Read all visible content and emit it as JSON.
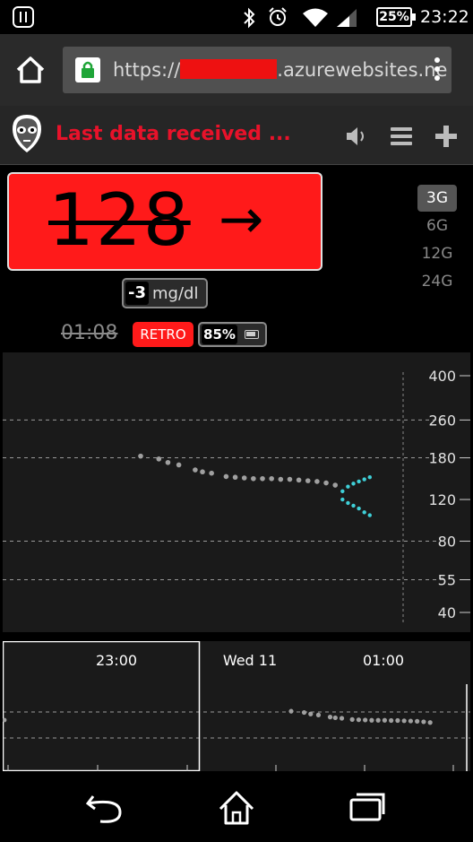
{
  "status_bar": {
    "battery": "25%",
    "time": "23:22",
    "icons": [
      "app-icon",
      "bluetooth-icon",
      "alarm-icon",
      "wifi-icon",
      "signal-icon",
      "battery-icon"
    ]
  },
  "browser": {
    "url_prefix": "https://",
    "url_suffix": ".azurewebsites.ne",
    "icons": [
      "home-icon",
      "lock-icon",
      "overflow-menu-icon"
    ]
  },
  "header": {
    "status_text": "Last data received ...",
    "icons": [
      "alien-logo-icon",
      "speaker-icon",
      "menu-icon",
      "plus-icon"
    ]
  },
  "reading": {
    "bg_value": "128",
    "trend_arrow": "→",
    "delta_value": "-3",
    "unit": "mg/dl",
    "time_ago": "01:08",
    "retro_label": "RETRO",
    "uploader_battery": "85%",
    "colors": {
      "urgent": "#ff1a1a",
      "status_text": "#e8122a"
    }
  },
  "range_buttons": [
    {
      "label": "3G",
      "active": true
    },
    {
      "label": "6G",
      "active": false
    },
    {
      "label": "12G",
      "active": false
    },
    {
      "label": "24G",
      "active": false
    }
  ],
  "chart_data": {
    "type": "scatter",
    "title": "",
    "y_scale": "log",
    "y_ticks": [
      400,
      260,
      180,
      120,
      80,
      55,
      40
    ],
    "y_guides": [
      260,
      180,
      80,
      55
    ],
    "focus_x_ticks": [
      "23:00",
      "Wed 11",
      "01:00"
    ],
    "series": [
      {
        "color": "#a0a0a0",
        "x_minutes_after_23h": [
          28,
          38,
          43,
          49,
          58,
          62,
          67,
          75,
          80,
          85,
          90,
          95,
          100,
          105,
          110,
          115,
          120,
          125,
          130,
          135
        ],
        "values": [
          183,
          178,
          172,
          168,
          160,
          157,
          155,
          150,
          149,
          148,
          147,
          147,
          147,
          146,
          146,
          145,
          144,
          143,
          141,
          138
        ]
      },
      {
        "color": "#3fd0d8",
        "x_minutes_after_23h": [
          139,
          139,
          142,
          142,
          145,
          145,
          148,
          148,
          151,
          151,
          154,
          154
        ],
        "values": [
          130,
          120,
          136,
          116,
          140,
          113,
          143,
          110,
          146,
          106,
          149,
          103
        ]
      }
    ],
    "colors": {
      "history": "#a0a0a0",
      "forecast": "#3fd0d8",
      "grid": "#888888"
    }
  },
  "bottom_nav": {
    "icons": [
      "back-icon",
      "home-icon",
      "tabs-icon"
    ]
  }
}
